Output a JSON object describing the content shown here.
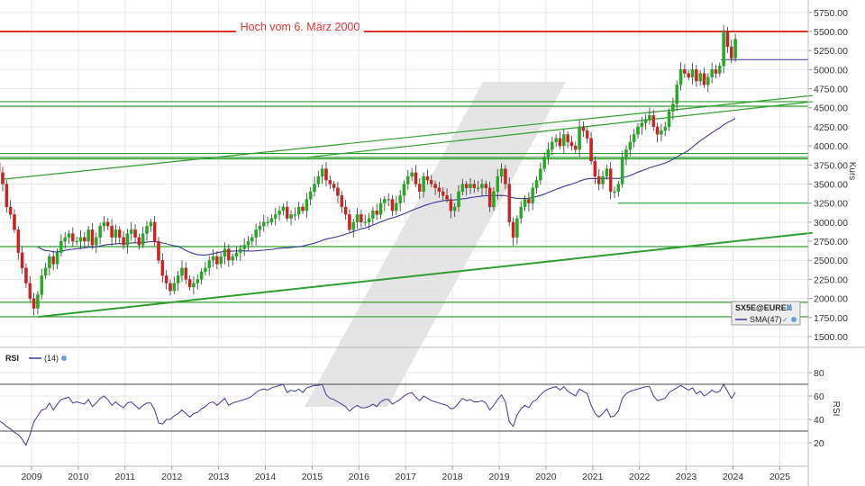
{
  "chart_data": [
    {
      "type": "candlestick",
      "instrument": "SX5E@EUREX",
      "ylabel": "Kurs",
      "ylim": [
        1500,
        5750
      ],
      "y_ticks": [
        "5750.00",
        "5500.00",
        "5250.00",
        "5000.00",
        "4750.00",
        "4500.00",
        "4250.00",
        "4000.00",
        "3750.00",
        "3500.00",
        "3250.00",
        "3000.00",
        "2750.00",
        "2500.00",
        "2250.00",
        "2000.00",
        "1750.00",
        "1500.00"
      ],
      "x_ticks": [
        "2009",
        "2010",
        "2011",
        "2012",
        "2013",
        "2014",
        "2015",
        "2016",
        "2017",
        "2018",
        "2019",
        "2020",
        "2021",
        "2022",
        "2023",
        "2024",
        "2025"
      ],
      "grid": true,
      "annotation": {
        "text": "Hoch vom 6. März 2000",
        "value": 5500
      },
      "legend": {
        "instrument_label": "SX5E@EUREX",
        "sma_label": "SMA(47)"
      },
      "colors": {
        "up": "#22aa22",
        "down": "#cc2222",
        "sma": "#3a3a9a",
        "support": "#2e9e2e",
        "resistance": "#e03030"
      },
      "horizontal_levels": [
        5500,
        5130,
        4580,
        4520,
        3900,
        3850,
        3830,
        3250,
        2680,
        1950,
        1760
      ],
      "trendlines": [
        {
          "from": [
            2008.35,
            3560
          ],
          "to": [
            2025.7,
            4660
          ]
        },
        {
          "from": [
            2014.9,
            3850
          ],
          "to": [
            2025.7,
            4580
          ]
        },
        {
          "from": [
            2009.15,
            1760
          ],
          "to": [
            2025.7,
            2860
          ]
        }
      ],
      "monthly_close": [
        3650,
        3500,
        3200,
        3100,
        2900,
        2600,
        2400,
        2200,
        2000,
        1870,
        2050,
        2300,
        2400,
        2550,
        2450,
        2600,
        2750,
        2800,
        2850,
        2750,
        2750,
        2800,
        2750,
        2900,
        2700,
        2800,
        2950,
        3000,
        2950,
        2800,
        2900,
        2800,
        2700,
        2850,
        2900,
        2800,
        2700,
        2850,
        2950,
        3000,
        2750,
        2500,
        2300,
        2200,
        2100,
        2200,
        2300,
        2400,
        2250,
        2150,
        2200,
        2250,
        2350,
        2400,
        2500,
        2550,
        2450,
        2550,
        2650,
        2500,
        2550,
        2600,
        2650,
        2700,
        2750,
        2800,
        2900,
        2950,
        3000,
        3000,
        3050,
        3100,
        3150,
        3200,
        3050,
        3100,
        3100,
        3200,
        3150,
        3300,
        3400,
        3500,
        3600,
        3700,
        3550,
        3500,
        3450,
        3350,
        3200,
        3100,
        2900,
        3000,
        3100,
        3000,
        3000,
        3050,
        3150,
        3100,
        3250,
        3300,
        3300,
        3150,
        3250,
        3350,
        3500,
        3600,
        3650,
        3500,
        3400,
        3600,
        3550,
        3500,
        3450,
        3400,
        3350,
        3300,
        3150,
        3200,
        3400,
        3500,
        3450,
        3500,
        3450,
        3450,
        3500,
        3450,
        3200,
        3400,
        3600,
        3700,
        3500,
        3000,
        2800,
        3050,
        3200,
        3300,
        3250,
        3450,
        3550,
        3700,
        3850,
        3950,
        4050,
        4100,
        4000,
        4150,
        4050,
        4000,
        3950,
        4250,
        4200,
        4100,
        3800,
        3600,
        3500,
        3600,
        3700,
        3400,
        3400,
        3500,
        3850,
        3950,
        4050,
        4150,
        4250,
        4300,
        4350,
        4400,
        4250,
        4150,
        4200,
        4250,
        4450,
        4550,
        4800,
        5000,
        4950,
        4900,
        5000,
        4850,
        4950,
        4800,
        4900,
        5000,
        4950,
        5050,
        5500,
        5300,
        5150,
        5400
      ]
    },
    {
      "type": "line",
      "indicator": "RSI",
      "legend": {
        "name": "RSI",
        "period": "(14)"
      },
      "ylabel": "RSI",
      "ylim": [
        10,
        90
      ],
      "y_ticks": [
        "80",
        "60",
        "40",
        "20"
      ],
      "levels": [
        70,
        30
      ],
      "monthly_values": [
        39,
        37,
        34,
        32,
        29,
        27,
        23,
        18,
        27,
        38,
        43,
        48,
        49,
        54,
        48,
        53,
        57,
        58,
        59,
        54,
        55,
        54,
        53,
        57,
        51,
        54,
        58,
        60,
        57,
        52,
        55,
        52,
        50,
        54,
        55,
        52,
        49,
        52,
        54,
        54,
        48,
        37,
        36,
        40,
        40,
        43,
        45,
        48,
        45,
        42,
        45,
        46,
        49,
        51,
        54,
        55,
        52,
        55,
        58,
        52,
        54,
        55,
        56,
        57,
        58,
        60,
        63,
        65,
        66,
        65,
        67,
        68,
        69,
        70,
        63,
        65,
        64,
        66,
        63,
        67,
        68,
        69,
        69,
        70,
        61,
        58,
        57,
        55,
        53,
        51,
        47,
        50,
        52,
        50,
        50,
        51,
        53,
        51,
        55,
        57,
        57,
        53,
        55,
        57,
        60,
        62,
        63,
        59,
        56,
        60,
        58,
        56,
        55,
        54,
        53,
        52,
        49,
        50,
        54,
        58,
        56,
        57,
        55,
        55,
        56,
        54,
        48,
        52,
        57,
        61,
        55,
        38,
        34,
        44,
        49,
        52,
        50,
        55,
        57,
        61,
        64,
        66,
        67,
        68,
        65,
        68,
        64,
        62,
        60,
        66,
        64,
        62,
        52,
        45,
        42,
        45,
        49,
        42,
        43,
        47,
        58,
        62,
        64,
        65,
        66,
        67,
        68,
        68,
        60,
        56,
        57,
        58,
        63,
        65,
        67,
        69,
        67,
        65,
        67,
        62,
        64,
        60,
        62,
        65,
        63,
        64,
        70,
        64,
        58,
        63
      ]
    }
  ]
}
